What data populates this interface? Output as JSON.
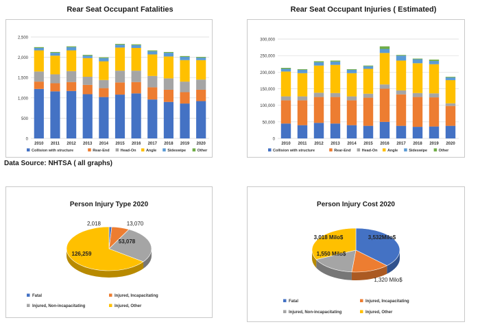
{
  "colors": {
    "Collision with structure": "#4472c4",
    "Rear-End": "#ed7d31",
    "Head-On": "#a5a5a5",
    "Angle": "#ffc000",
    "Sideswipe": "#5b9bd5",
    "Other": "#70ad47",
    "Fatal": "#4472c4",
    "Injured, Incapacitating": "#ed7d31",
    "Injured, Non-incapacitating": "#a5a5a5",
    "Injured, Other": "#ffc000"
  },
  "source_note": "Data Source: NHTSA ( all graphs)",
  "chart_data": [
    {
      "type": "bar",
      "stacked": true,
      "title": "Rear Seat Occupant Fatalities",
      "categories": [
        "2010",
        "2011",
        "2012",
        "2013",
        "2014",
        "2015",
        "2016",
        "2017",
        "2018",
        "2019",
        "2020"
      ],
      "ylim": [
        0,
        2500
      ],
      "yticks": [
        "0",
        "500",
        "1,000",
        "1,500",
        "2,000",
        "2,500"
      ],
      "ytick_values": [
        0,
        500,
        1000,
        1500,
        2000,
        2500
      ],
      "grid": true,
      "legend_position": "bottom",
      "series": [
        {
          "name": "Collision with structure",
          "values": [
            1220,
            1160,
            1170,
            1090,
            1020,
            1080,
            1110,
            960,
            900,
            860,
            920
          ]
        },
        {
          "name": "Rear-End",
          "values": [
            180,
            200,
            220,
            230,
            220,
            300,
            280,
            300,
            300,
            280,
            280
          ]
        },
        {
          "name": "Head-On",
          "values": [
            250,
            220,
            270,
            200,
            200,
            290,
            280,
            280,
            280,
            260,
            250
          ]
        },
        {
          "name": "Angle",
          "values": [
            520,
            460,
            510,
            460,
            460,
            570,
            560,
            530,
            540,
            530,
            480
          ]
        },
        {
          "name": "Sideswipe",
          "values": [
            60,
            70,
            80,
            60,
            80,
            70,
            70,
            80,
            90,
            80,
            60
          ]
        },
        {
          "name": "Other",
          "values": [
            20,
            20,
            20,
            20,
            20,
            20,
            20,
            20,
            20,
            20,
            20
          ]
        }
      ]
    },
    {
      "type": "bar",
      "stacked": true,
      "title": "Rear Seat Occupant Injuries ( Estimated)",
      "categories": [
        "2010",
        "2011",
        "2012",
        "2013",
        "2014",
        "2015",
        "2016",
        "2017",
        "2018",
        "2019",
        "2020"
      ],
      "ylim": [
        0,
        300000
      ],
      "yticks": [
        "0",
        "50,000",
        "100,000",
        "150,000",
        "200,000",
        "250,000",
        "300,000"
      ],
      "ytick_values": [
        0,
        50000,
        100000,
        150000,
        200000,
        250000,
        300000
      ],
      "grid": true,
      "legend_position": "bottom",
      "series": [
        {
          "name": "Collision with structure",
          "values": [
            45000,
            40000,
            47000,
            45000,
            40000,
            38000,
            50000,
            38000,
            35000,
            36000,
            38000
          ]
        },
        {
          "name": "Rear-End",
          "values": [
            70000,
            75000,
            78000,
            80000,
            75000,
            85000,
            100000,
            95000,
            90000,
            88000,
            60000
          ]
        },
        {
          "name": "Head-On",
          "values": [
            12000,
            12000,
            13000,
            12000,
            12000,
            12000,
            13000,
            12000,
            12000,
            12000,
            8000
          ]
        },
        {
          "name": "Angle",
          "values": [
            75000,
            70000,
            82000,
            85000,
            70000,
            75000,
            95000,
            90000,
            90000,
            88000,
            70000
          ]
        },
        {
          "name": "Sideswipe",
          "values": [
            8000,
            10000,
            10000,
            10000,
            10000,
            8000,
            12000,
            15000,
            12000,
            10000,
            8000
          ]
        },
        {
          "name": "Other",
          "values": [
            3000,
            2000,
            3000,
            3000,
            2000,
            2000,
            8000,
            2000,
            2000,
            4000,
            2000
          ]
        }
      ]
    },
    {
      "type": "pie",
      "title": "Person Injury Type 2020",
      "legend_position": "bottom",
      "slices": [
        {
          "name": "Fatal",
          "value": 2018,
          "label": "2,018"
        },
        {
          "name": "Injured, Incapacitating",
          "value": 13070,
          "label": "13,070"
        },
        {
          "name": "Injured, Non-incapacitating",
          "value": 53078,
          "label": "53,078"
        },
        {
          "name": "Injured, Other",
          "value": 126259,
          "label": "126,259"
        }
      ]
    },
    {
      "type": "pie",
      "title": "Person Injury Cost 2020",
      "legend_position": "bottom",
      "slices": [
        {
          "name": "Fatal",
          "value": 3532,
          "label": "3,532Milo$"
        },
        {
          "name": "Injured, Incapacitating",
          "value": 1320,
          "label": "1,320 Milo$"
        },
        {
          "name": "Injured, Non-incapacitating",
          "value": 1550,
          "label": "1,550 Milo$"
        },
        {
          "name": "Injured, Other",
          "value": 3018,
          "label": "3,018 Milo$"
        }
      ]
    }
  ]
}
